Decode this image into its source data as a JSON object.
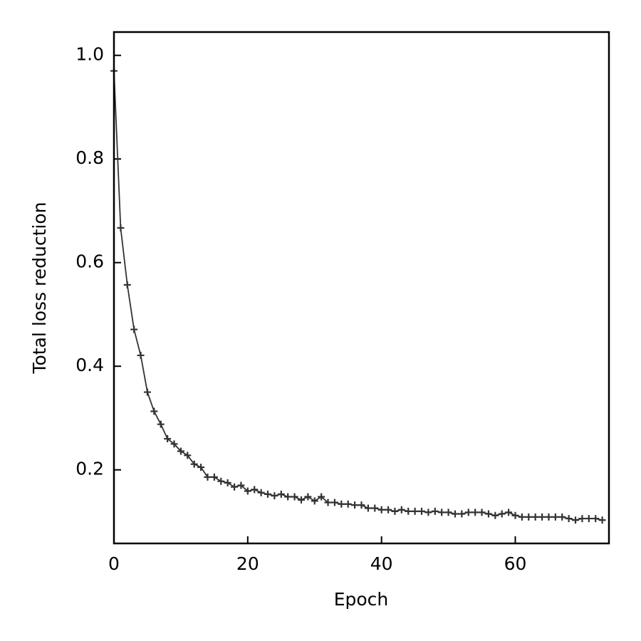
{
  "chart_data": {
    "type": "line",
    "x_label": "Epoch",
    "y_label": "Total loss reduction",
    "x": [
      0,
      1,
      2,
      3,
      4,
      5,
      6,
      7,
      8,
      9,
      10,
      11,
      12,
      13,
      14,
      15,
      16,
      17,
      18,
      19,
      20,
      21,
      22,
      23,
      24,
      25,
      26,
      27,
      28,
      29,
      30,
      31,
      32,
      33,
      34,
      35,
      36,
      37,
      38,
      39,
      40,
      41,
      42,
      43,
      44,
      45,
      46,
      47,
      48,
      49,
      50,
      51,
      52,
      53,
      54,
      55,
      56,
      57,
      58,
      59,
      60,
      61,
      62,
      63,
      64,
      65,
      66,
      67,
      68,
      69,
      70,
      71,
      72,
      73
    ],
    "series": [
      {
        "color": "#333333",
        "values": [
          0.97,
          0.667,
          0.557,
          0.471,
          0.421,
          0.35,
          0.313,
          0.288,
          0.26,
          0.25,
          0.236,
          0.228,
          0.211,
          0.205,
          0.186,
          0.186,
          0.178,
          0.175,
          0.167,
          0.17,
          0.159,
          0.162,
          0.156,
          0.153,
          0.15,
          0.153,
          0.148,
          0.148,
          0.142,
          0.148,
          0.14,
          0.148,
          0.137,
          0.137,
          0.134,
          0.134,
          0.132,
          0.132,
          0.126,
          0.126,
          0.123,
          0.123,
          0.12,
          0.123,
          0.12,
          0.12,
          0.12,
          0.118,
          0.12,
          0.118,
          0.118,
          0.115,
          0.115,
          0.118,
          0.118,
          0.118,
          0.115,
          0.112,
          0.115,
          0.118,
          0.112,
          0.109,
          0.109,
          0.109,
          0.109,
          0.109,
          0.109,
          0.109,
          0.106,
          0.103,
          0.106,
          0.106,
          0.106,
          0.103
        ]
      }
    ],
    "xlim": [
      0,
      74
    ],
    "ylim": [
      0.058,
      1.045
    ],
    "xticks": [
      0,
      20,
      40,
      60
    ],
    "yticks": [
      {
        "value": 0.2,
        "label": "0.2"
      },
      {
        "value": 0.4,
        "label": "0.4"
      },
      {
        "value": 0.6,
        "label": "0.6"
      },
      {
        "value": 0.8,
        "label": "0.8"
      },
      {
        "value": 1,
        "label": "1.0"
      }
    ]
  }
}
